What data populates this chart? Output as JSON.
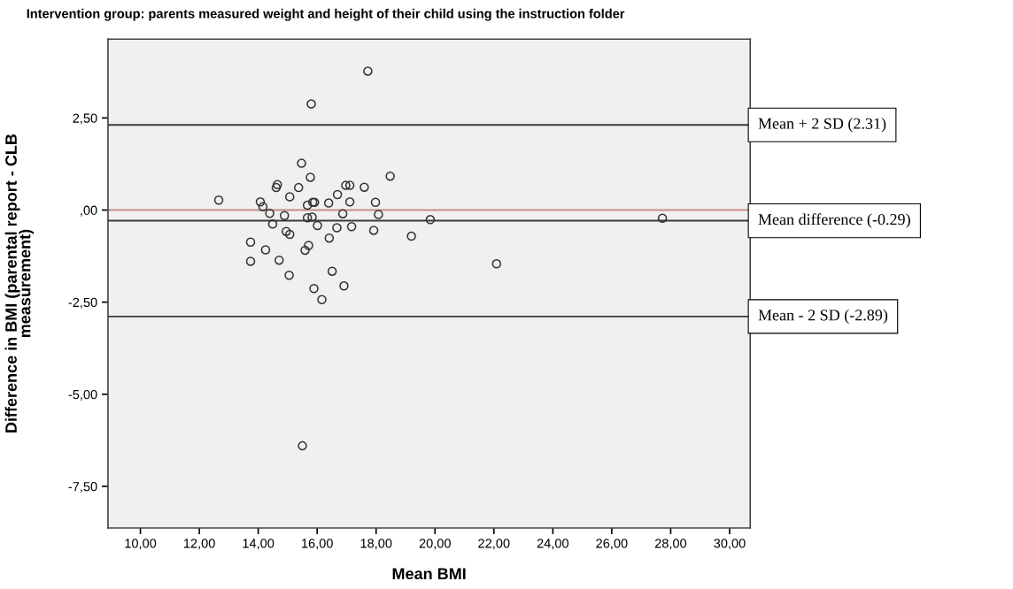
{
  "chart_data": {
    "type": "scatter",
    "title": "Intervention group: parents measured weight and height of their child using the instruction folder",
    "xlabel": "Mean BMI",
    "ylabel": "Difference in BMI (parental report - CLB\nmeasurement)",
    "marker": "circle",
    "grid": false,
    "legend": false,
    "xlim": [
      8.9,
      30.7
    ],
    "ylim": [
      -8.63,
      4.64
    ],
    "xticks": [
      {
        "value": 10,
        "label": "10,00"
      },
      {
        "value": 12,
        "label": "12,00"
      },
      {
        "value": 14,
        "label": "14,00"
      },
      {
        "value": 16,
        "label": "16,00"
      },
      {
        "value": 18,
        "label": "18,00"
      },
      {
        "value": 20,
        "label": "20,00"
      },
      {
        "value": 22,
        "label": "22,00"
      },
      {
        "value": 24,
        "label": "24,00"
      },
      {
        "value": 26,
        "label": "26,00"
      },
      {
        "value": 28,
        "label": "28,00"
      },
      {
        "value": 30,
        "label": "30,00"
      }
    ],
    "yticks": [
      {
        "value": 2.5,
        "label": "2,50"
      },
      {
        "value": 0,
        "label": ",00"
      },
      {
        "value": -2.5,
        "label": "-2,50"
      },
      {
        "value": -5,
        "label": "-5,00"
      },
      {
        "value": -7.5,
        "label": "-7,50"
      }
    ],
    "ref_lines": [
      {
        "axis": "y",
        "value": 0,
        "color": "#c98a8a"
      },
      {
        "axis": "y",
        "value": 2.31,
        "label": "Mean + 2 SD (2.31)",
        "color": "#3a3a3a"
      },
      {
        "axis": "y",
        "value": -0.29,
        "label": "Mean difference (-0.29)",
        "color": "#3a3a3a"
      },
      {
        "axis": "y",
        "value": -2.89,
        "label": "Mean - 2 SD (-2.89)",
        "color": "#3a3a3a"
      }
    ],
    "series": [
      {
        "color": "#333333",
        "x": [
          12.66,
          14.07,
          14.16,
          14.39,
          14.49,
          14.65,
          14.61,
          14.89,
          14.95,
          15.07,
          15.07,
          15.37,
          15.47,
          15.77,
          15.67,
          15.91,
          15.85,
          15.67,
          15.83,
          16.01,
          16.39,
          16.69,
          16.97,
          17.11,
          17.6,
          18.48,
          17.11,
          16.87,
          17.98,
          18.08,
          16.67,
          17.17,
          17.92,
          19.2,
          16.41,
          15.71,
          15.59,
          13.74,
          14.25,
          13.74,
          14.71,
          15.05,
          16.51,
          16.91,
          15.89,
          16.16,
          19.84,
          22.09,
          27.72,
          17.72,
          15.8,
          15.5
        ],
        "values": [
          0.27,
          0.22,
          0.09,
          -0.09,
          -0.38,
          0.69,
          0.61,
          -0.15,
          -0.58,
          -0.66,
          0.36,
          0.61,
          1.27,
          0.89,
          0.13,
          0.21,
          0.21,
          -0.21,
          -0.19,
          -0.42,
          0.19,
          0.42,
          0.67,
          0.67,
          0.62,
          0.92,
          0.22,
          -0.1,
          0.21,
          -0.12,
          -0.48,
          -0.45,
          -0.55,
          -0.71,
          -0.76,
          -0.96,
          -1.09,
          -0.87,
          -1.08,
          -1.39,
          -1.36,
          -1.77,
          -1.66,
          -2.06,
          -2.13,
          -2.43,
          -0.26,
          -1.46,
          -0.22,
          3.77,
          2.88,
          -6.4
        ]
      }
    ]
  }
}
